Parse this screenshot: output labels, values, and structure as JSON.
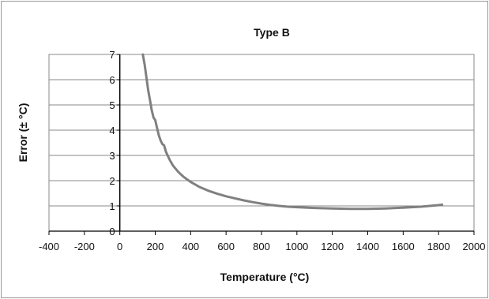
{
  "chart_data": {
    "type": "line",
    "title": "Type B",
    "xlabel": "Temperature (°C)",
    "ylabel": "Error (± °C)",
    "xlim": [
      -400,
      2000
    ],
    "ylim": [
      0,
      7
    ],
    "x_ticks": [
      -400,
      -200,
      0,
      200,
      400,
      600,
      800,
      1000,
      1200,
      1400,
      1600,
      1800,
      2000
    ],
    "y_ticks": [
      0,
      1,
      2,
      3,
      4,
      5,
      6,
      7
    ],
    "grid": "horizontal",
    "legend": "none",
    "series": [
      {
        "color": "#808080",
        "x": [
          130,
          140,
          150,
          160,
          170,
          180,
          190,
          200,
          210,
          220,
          230,
          240,
          250,
          260,
          280,
          300,
          330,
          360,
          400,
          450,
          500,
          550,
          600,
          650,
          700,
          750,
          800,
          850,
          900,
          950,
          1000,
          1100,
          1200,
          1300,
          1400,
          1500,
          1600,
          1700,
          1800,
          1820
        ],
        "y": [
          7.0,
          6.6,
          6.1,
          5.6,
          5.2,
          4.8,
          4.5,
          4.4,
          4.1,
          3.8,
          3.6,
          3.45,
          3.4,
          3.15,
          2.85,
          2.6,
          2.35,
          2.15,
          1.95,
          1.75,
          1.6,
          1.48,
          1.38,
          1.3,
          1.22,
          1.15,
          1.09,
          1.04,
          1.0,
          0.97,
          0.95,
          0.92,
          0.9,
          0.88,
          0.88,
          0.9,
          0.93,
          0.97,
          1.03,
          1.05
        ]
      }
    ]
  }
}
